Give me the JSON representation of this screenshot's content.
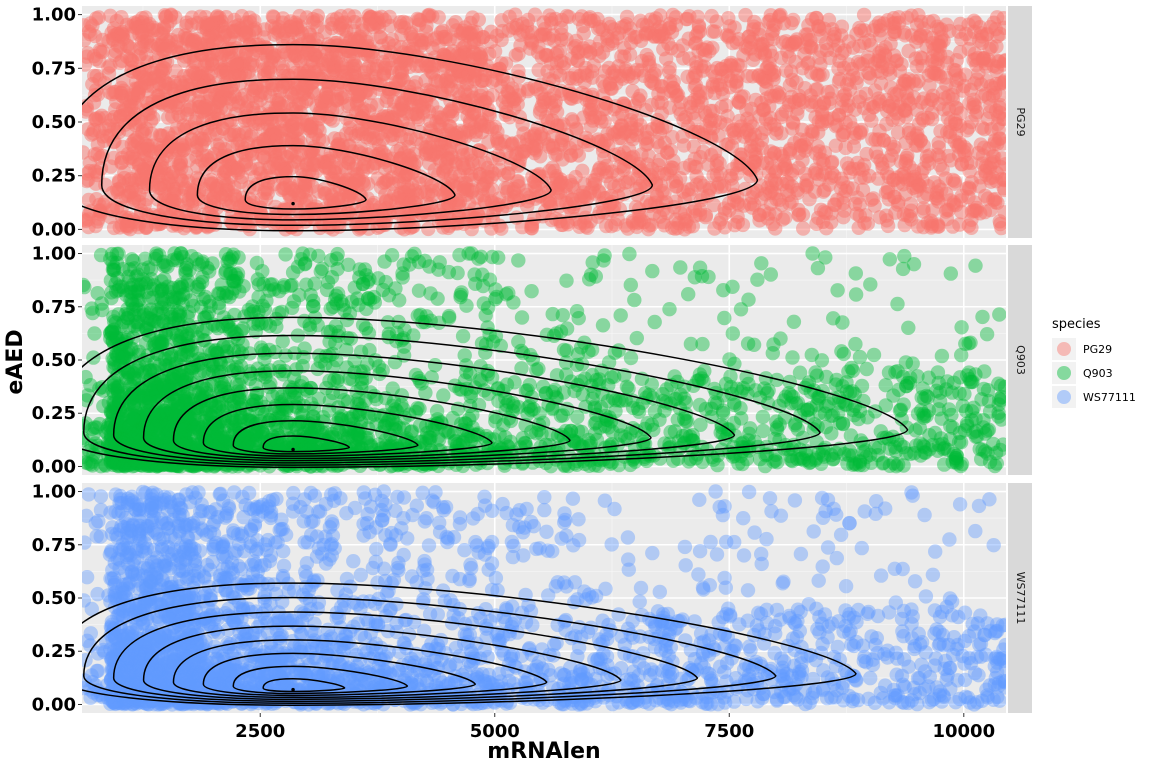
{
  "chart_data": {
    "type": "scatter",
    "xlabel": "mRNAlen",
    "ylabel": "eAED",
    "xlim": [
      600,
      10450
    ],
    "ylim": [
      -0.04,
      1.04
    ],
    "x_ticks": [
      2500,
      5000,
      7500,
      10000
    ],
    "x_tick_labels": [
      "2500",
      "5000",
      "7500",
      "10000"
    ],
    "y_ticks": [
      0,
      0.25,
      0.5,
      0.75,
      1
    ],
    "y_tick_labels": [
      "0.00",
      "0.25",
      "0.50",
      "0.75",
      "1.00"
    ],
    "grid": true,
    "facets": "rows by species",
    "legend": {
      "title": "species",
      "position": "right",
      "entries": [
        {
          "label": "PG29",
          "color": "#F8766D"
        },
        {
          "label": "Q903",
          "color": "#00BA38"
        },
        {
          "label": "WS77111",
          "color": "#619CFF"
        }
      ]
    },
    "series": [
      {
        "name": "PG29",
        "color": "#F8766D",
        "density": "high",
        "contour_peak": {
          "x": 2850,
          "y": 0.12
        },
        "outer_contour_extent": {
          "x": [
            600,
            7800
          ],
          "y": [
            0,
            0.86
          ]
        }
      },
      {
        "name": "Q903",
        "color": "#00BA38",
        "density": "medium",
        "contour_peak": {
          "x": 2850,
          "y": 0.08
        },
        "outer_contour_extent": {
          "x": [
            600,
            9400
          ],
          "y": [
            0,
            0.7
          ]
        }
      },
      {
        "name": "WS77111",
        "color": "#619CFF",
        "density": "medium",
        "contour_peak": {
          "x": 2850,
          "y": 0.07
        },
        "outer_contour_extent": {
          "x": [
            600,
            8850
          ],
          "y": [
            0,
            0.57
          ]
        }
      }
    ]
  }
}
